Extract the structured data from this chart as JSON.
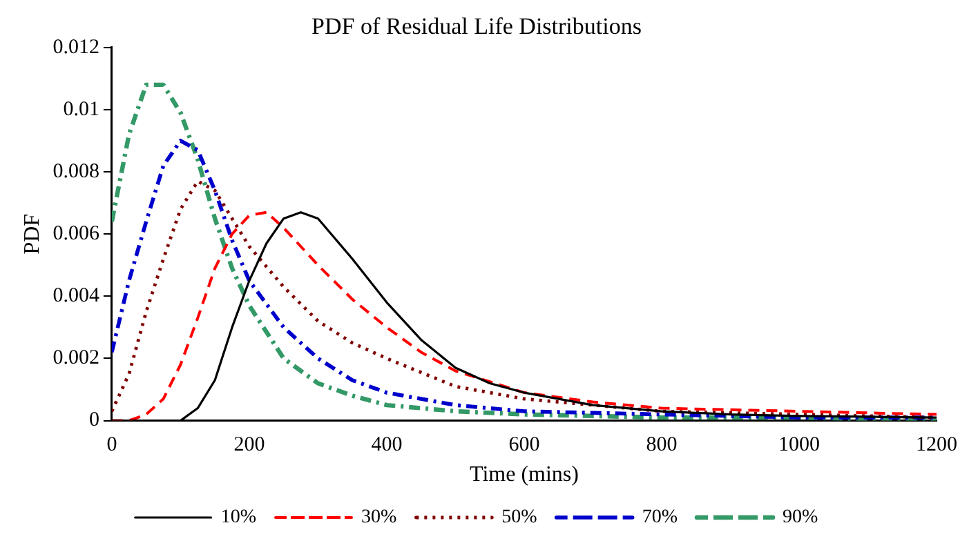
{
  "chart_data": {
    "type": "line",
    "title": "PDF of Residual Life Distributions",
    "xlabel": "Time (mins)",
    "ylabel": "PDF",
    "xlim": [
      0,
      1200
    ],
    "xticks": [
      0,
      200,
      400,
      600,
      800,
      1000,
      1200
    ],
    "ylim": [
      0,
      0.012
    ],
    "yticks": [
      0,
      0.002,
      0.004,
      0.006,
      0.008,
      0.01,
      0.012
    ],
    "grid": false,
    "legend": "bottom",
    "marker": "none",
    "series": [
      {
        "name": "10%",
        "color": "#000000",
        "line_style": "solid",
        "x": [
          0,
          100,
          125,
          150,
          175,
          200,
          225,
          250,
          275,
          300,
          350,
          400,
          450,
          500,
          550,
          600,
          700,
          800,
          900,
          1000,
          1200
        ],
        "values": [
          0,
          0,
          0.0004,
          0.0013,
          0.003,
          0.0045,
          0.0057,
          0.0065,
          0.0067,
          0.0065,
          0.0052,
          0.0038,
          0.0026,
          0.0017,
          0.0012,
          0.0009,
          0.0005,
          0.0003,
          0.0002,
          0.00015,
          0.0001
        ]
      },
      {
        "name": "30%",
        "color": "#ff0000",
        "line_style": "dashed",
        "x": [
          0,
          25,
          50,
          75,
          100,
          125,
          150,
          175,
          200,
          225,
          250,
          300,
          350,
          400,
          450,
          500,
          600,
          700,
          800,
          1000,
          1200
        ],
        "values": [
          0,
          0,
          0.0002,
          0.0007,
          0.0018,
          0.0033,
          0.0049,
          0.006,
          0.0066,
          0.0067,
          0.0062,
          0.005,
          0.0039,
          0.003,
          0.0022,
          0.0016,
          0.0009,
          0.0006,
          0.0004,
          0.0003,
          0.0002
        ]
      },
      {
        "name": "50%",
        "color": "#800000",
        "line_style": "dotted",
        "x": [
          0,
          25,
          50,
          75,
          100,
          125,
          150,
          175,
          200,
          250,
          300,
          350,
          400,
          500,
          600,
          800,
          1000,
          1200
        ],
        "values": [
          0.0003,
          0.0015,
          0.0035,
          0.0052,
          0.0068,
          0.0077,
          0.0074,
          0.0065,
          0.0056,
          0.0043,
          0.0032,
          0.0025,
          0.002,
          0.0011,
          0.0007,
          0.0003,
          0.0002,
          0.0001
        ]
      },
      {
        "name": "70%",
        "color": "#0000cc",
        "line_style": "dashdot",
        "x": [
          0,
          25,
          50,
          75,
          100,
          125,
          150,
          175,
          200,
          250,
          300,
          350,
          400,
          500,
          600,
          800,
          1000,
          1200
        ],
        "values": [
          0.0022,
          0.0045,
          0.0064,
          0.0082,
          0.009,
          0.0087,
          0.0074,
          0.0058,
          0.0045,
          0.003,
          0.002,
          0.0013,
          0.0009,
          0.0005,
          0.0003,
          0.0002,
          0.0001,
          0.0001
        ]
      },
      {
        "name": "90%",
        "color": "#339966",
        "line_style": "dashdot",
        "x": [
          0,
          25,
          50,
          75,
          100,
          125,
          150,
          175,
          200,
          250,
          300,
          350,
          400,
          500,
          600,
          800,
          1000,
          1200
        ],
        "values": [
          0.0064,
          0.0092,
          0.0108,
          0.0108,
          0.0099,
          0.0084,
          0.0065,
          0.0049,
          0.0037,
          0.002,
          0.0012,
          0.0008,
          0.0005,
          0.0003,
          0.0002,
          0.0001,
          0.0001,
          0
        ]
      }
    ]
  }
}
